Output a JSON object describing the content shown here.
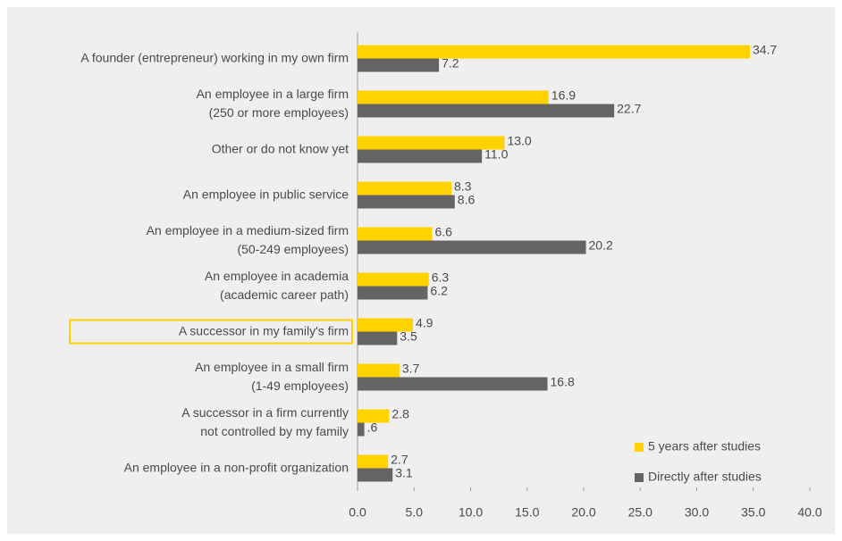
{
  "chart_data": {
    "type": "hbar",
    "categories": [
      "A founder (entrepreneur) working in my own firm",
      "An employee in a large firm\n(250 or more employees)",
      "Other or do not know yet",
      "An employee in public service",
      "An employee in a medium-sized firm\n(50-249 employees)",
      "An employee in academia\n(academic career path)",
      "A successor in my family's firm",
      "An employee in a small firm\n(1-49 employees)",
      "A successor in a firm currently\nnot controlled by my family",
      "An employee in a non-profit organization"
    ],
    "series": [
      {
        "name": "5 years after studies",
        "color": "#ffd200",
        "values": [
          34.7,
          16.9,
          13,
          8.3,
          6.6,
          6.3,
          4.9,
          3.7,
          2.8,
          2.7
        ],
        "value_labels": [
          "34.7",
          "16.9",
          "13.0",
          "8.3",
          "6.6",
          "6.3",
          "4.9",
          "3.7",
          "2.8",
          "2.7"
        ]
      },
      {
        "name": "Directly after studies",
        "color": "#646464",
        "values": [
          7.2,
          22.7,
          11,
          8.6,
          20.2,
          6.2,
          3.5,
          16.8,
          0.6,
          3.1
        ],
        "value_labels": [
          "7.2",
          "22.7",
          "11.0",
          "8.6",
          "20.2",
          "6.2",
          "3.5",
          "16.8",
          ".6",
          "3.1"
        ]
      }
    ],
    "xlim": [
      0,
      40
    ],
    "xticks": [
      {
        "value": 0,
        "label": "0.0"
      },
      {
        "value": 5,
        "label": "5.0"
      },
      {
        "value": 10,
        "label": "10.0"
      },
      {
        "value": 15,
        "label": "15.0"
      },
      {
        "value": 20,
        "label": "20.0"
      },
      {
        "value": 25,
        "label": "25.0"
      },
      {
        "value": 30,
        "label": "30.0"
      },
      {
        "value": 35,
        "label": "35.0"
      },
      {
        "value": 40,
        "label": "40.0"
      }
    ],
    "grid": false,
    "legend": "lower right",
    "highlight": 6
  }
}
